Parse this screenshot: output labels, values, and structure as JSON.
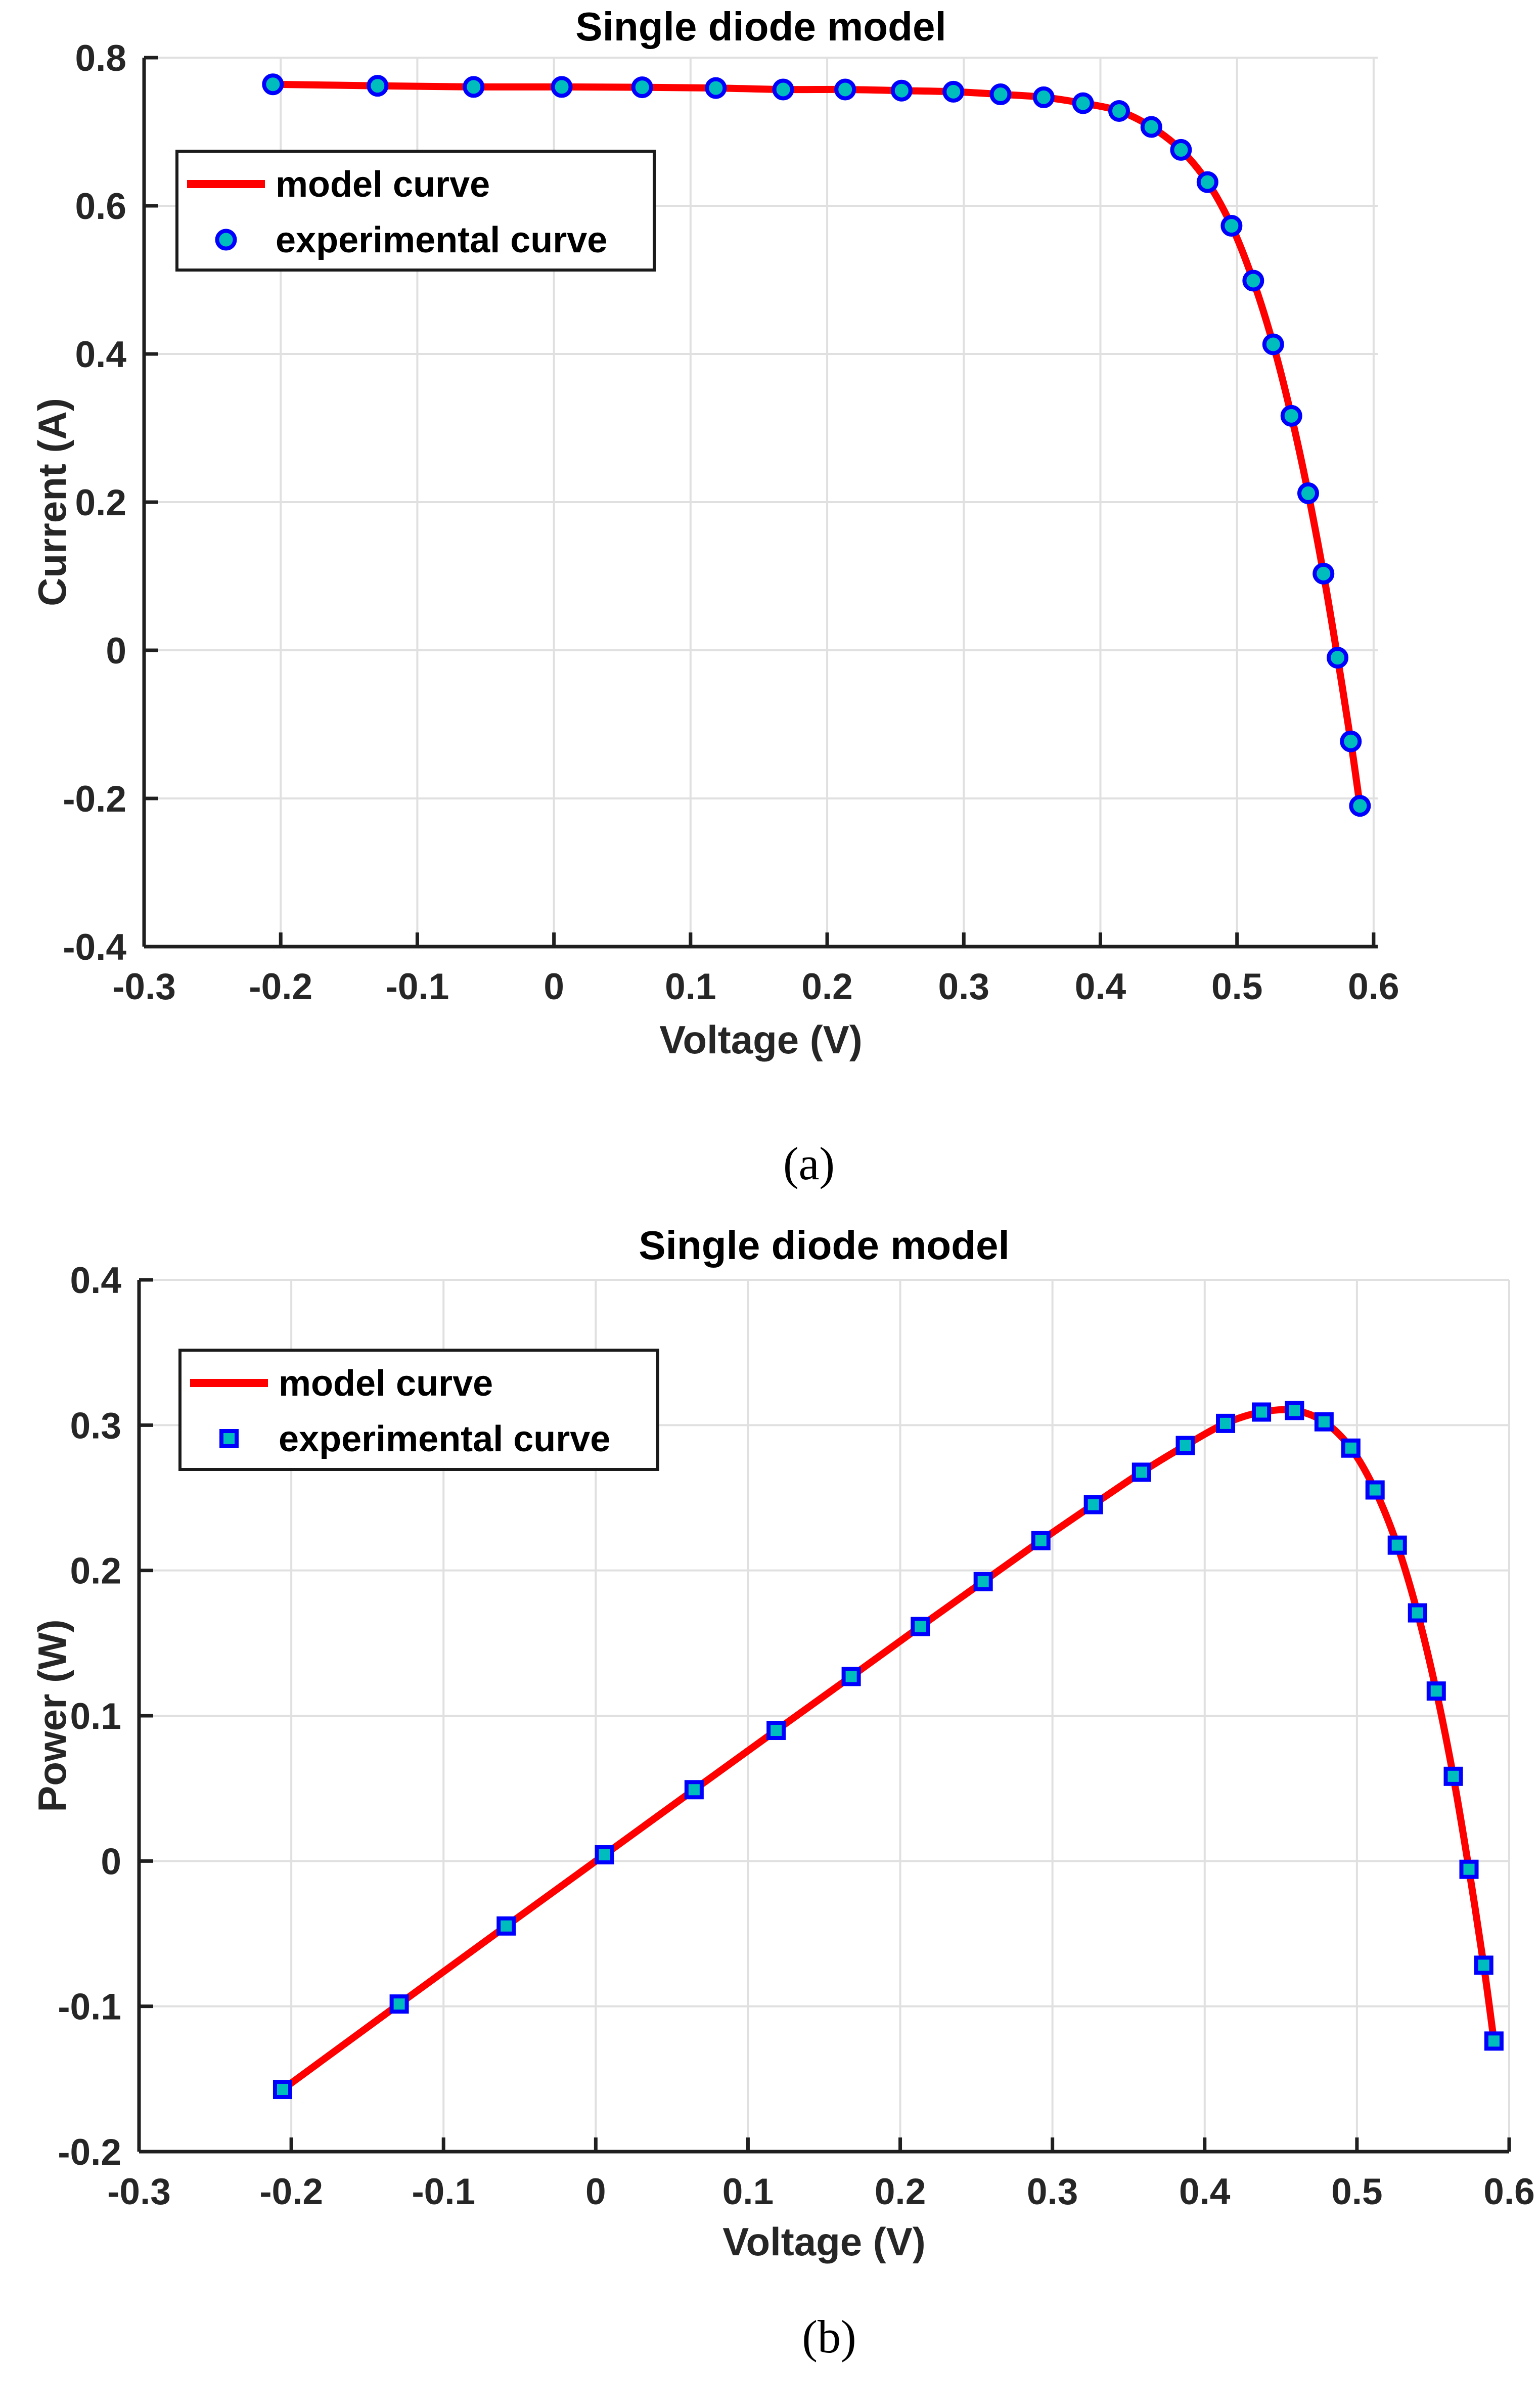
{
  "figure": {
    "background": "#FFFFFF",
    "captions": {
      "a": "(a)",
      "b": "(b)"
    }
  },
  "colors": {
    "model_line": "#FF0000",
    "marker_edge": "#0000FF",
    "marker_face": "#00BDBD",
    "grid": "#E0E0E0",
    "axis": "#1F1F1F",
    "text": "#262626",
    "legend_border": "#1A1A1A",
    "legend_background": "#FFFFFF"
  },
  "chart_data": [
    {
      "id": "iv-curve",
      "type": "line+scatter",
      "title": "Single diode model",
      "xlabel": "Voltage (V)",
      "ylabel": "Current (A)",
      "xlim": [
        -0.3,
        0.603
      ],
      "ylim": [
        -0.4,
        0.8
      ],
      "grid": true,
      "xticks": [
        -0.3,
        -0.2,
        -0.1,
        0,
        0.1,
        0.2,
        0.3,
        0.4,
        0.5,
        0.6
      ],
      "xtick_labels": [
        "-0.3",
        "-0.2",
        "-0.1",
        "0",
        "0.1",
        "0.2",
        "0.3",
        "0.4",
        "0.5",
        "0.6"
      ],
      "yticks": [
        0.8,
        0.6,
        0.4,
        0.2,
        0,
        -0.2,
        -0.4
      ],
      "ytick_labels": [
        "0.8",
        "0.6",
        "0.4",
        "0.2",
        "0",
        "-0.2",
        "-0.4"
      ],
      "legend": {
        "position": "upper-left",
        "entries": [
          {
            "label": "model curve",
            "type": "line",
            "color": "#FF0000"
          },
          {
            "label": "experimental curve",
            "type": "circle-marker",
            "face": "#00BDBD",
            "edge": "#0000FF"
          }
        ]
      },
      "x": [
        -0.2057,
        -0.1291,
        -0.0588,
        0.0057,
        0.0646,
        0.1185,
        0.1678,
        0.2132,
        0.2545,
        0.2924,
        0.3269,
        0.3585,
        0.3873,
        0.4137,
        0.4373,
        0.459,
        0.4784,
        0.496,
        0.5119,
        0.5265,
        0.5398,
        0.5521,
        0.5633,
        0.5736,
        0.5833,
        0.59
      ],
      "series": [
        {
          "name": "model curve",
          "type": "line",
          "y": [
            0.764,
            0.762,
            0.7605,
            0.7605,
            0.76,
            0.759,
            0.757,
            0.757,
            0.7555,
            0.754,
            0.7505,
            0.7465,
            0.7385,
            0.728,
            0.7065,
            0.6755,
            0.632,
            0.573,
            0.499,
            0.413,
            0.3165,
            0.212,
            0.1035,
            -0.01,
            -0.123,
            -0.21
          ]
        },
        {
          "name": "experimental curve",
          "type": "scatter",
          "marker": "circle",
          "y": [
            0.764,
            0.762,
            0.7605,
            0.7605,
            0.76,
            0.759,
            0.757,
            0.757,
            0.7555,
            0.754,
            0.7505,
            0.7465,
            0.7385,
            0.728,
            0.7065,
            0.6755,
            0.632,
            0.573,
            0.499,
            0.413,
            0.3165,
            0.212,
            0.1035,
            -0.01,
            -0.123,
            -0.21
          ]
        }
      ]
    },
    {
      "id": "pv-curve",
      "type": "line+scatter",
      "title": "Single diode model",
      "xlabel": "Voltage (V)",
      "ylabel": "Power (W)",
      "xlim": [
        -0.3,
        0.6
      ],
      "ylim": [
        -0.2,
        0.4
      ],
      "grid": true,
      "xticks": [
        -0.3,
        -0.2,
        -0.1,
        0,
        0.1,
        0.2,
        0.3,
        0.4,
        0.5,
        0.6
      ],
      "xtick_labels": [
        "-0.3",
        "-0.2",
        "-0.1",
        "0",
        "0.1",
        "0.2",
        "0.3",
        "0.4",
        "0.5",
        "0.6"
      ],
      "yticks": [
        0.4,
        0.3,
        0.2,
        0.1,
        0,
        -0.1,
        -0.2
      ],
      "ytick_labels": [
        "0.4",
        "0.3",
        "0.2",
        "0.1",
        "0",
        "-0.1",
        "-0.2"
      ],
      "legend": {
        "position": "upper-left",
        "entries": [
          {
            "label": "model curve",
            "type": "line",
            "color": "#FF0000"
          },
          {
            "label": "experimental curve",
            "type": "square-marker",
            "face": "#00BDBD",
            "edge": "#0000FF"
          }
        ]
      },
      "x": [
        -0.2057,
        -0.1291,
        -0.0588,
        0.0057,
        0.0646,
        0.1185,
        0.1678,
        0.2132,
        0.2545,
        0.2924,
        0.3269,
        0.3585,
        0.3873,
        0.4137,
        0.4373,
        0.459,
        0.4784,
        0.496,
        0.5119,
        0.5265,
        0.5398,
        0.5521,
        0.5633,
        0.5736,
        0.5833,
        0.59
      ],
      "series": [
        {
          "name": "model curve",
          "type": "line",
          "y": [
            -0.1572,
            -0.0984,
            -0.0447,
            0.0043,
            0.0491,
            0.0899,
            0.127,
            0.1614,
            0.1923,
            0.2205,
            0.2453,
            0.2676,
            0.286,
            0.3012,
            0.309,
            0.3101,
            0.3023,
            0.2842,
            0.2554,
            0.2174,
            0.1708,
            0.117,
            0.0583,
            -0.0057,
            -0.0717,
            -0.1239
          ]
        },
        {
          "name": "experimental curve",
          "type": "scatter",
          "marker": "square",
          "y": [
            -0.1572,
            -0.0984,
            -0.0447,
            0.0043,
            0.0491,
            0.0899,
            0.127,
            0.1614,
            0.1923,
            0.2205,
            0.2453,
            0.2676,
            0.286,
            0.3012,
            0.309,
            0.3101,
            0.3023,
            0.2842,
            0.2554,
            0.2174,
            0.1708,
            0.117,
            0.0583,
            -0.0057,
            -0.0717,
            -0.1239
          ]
        }
      ]
    }
  ]
}
